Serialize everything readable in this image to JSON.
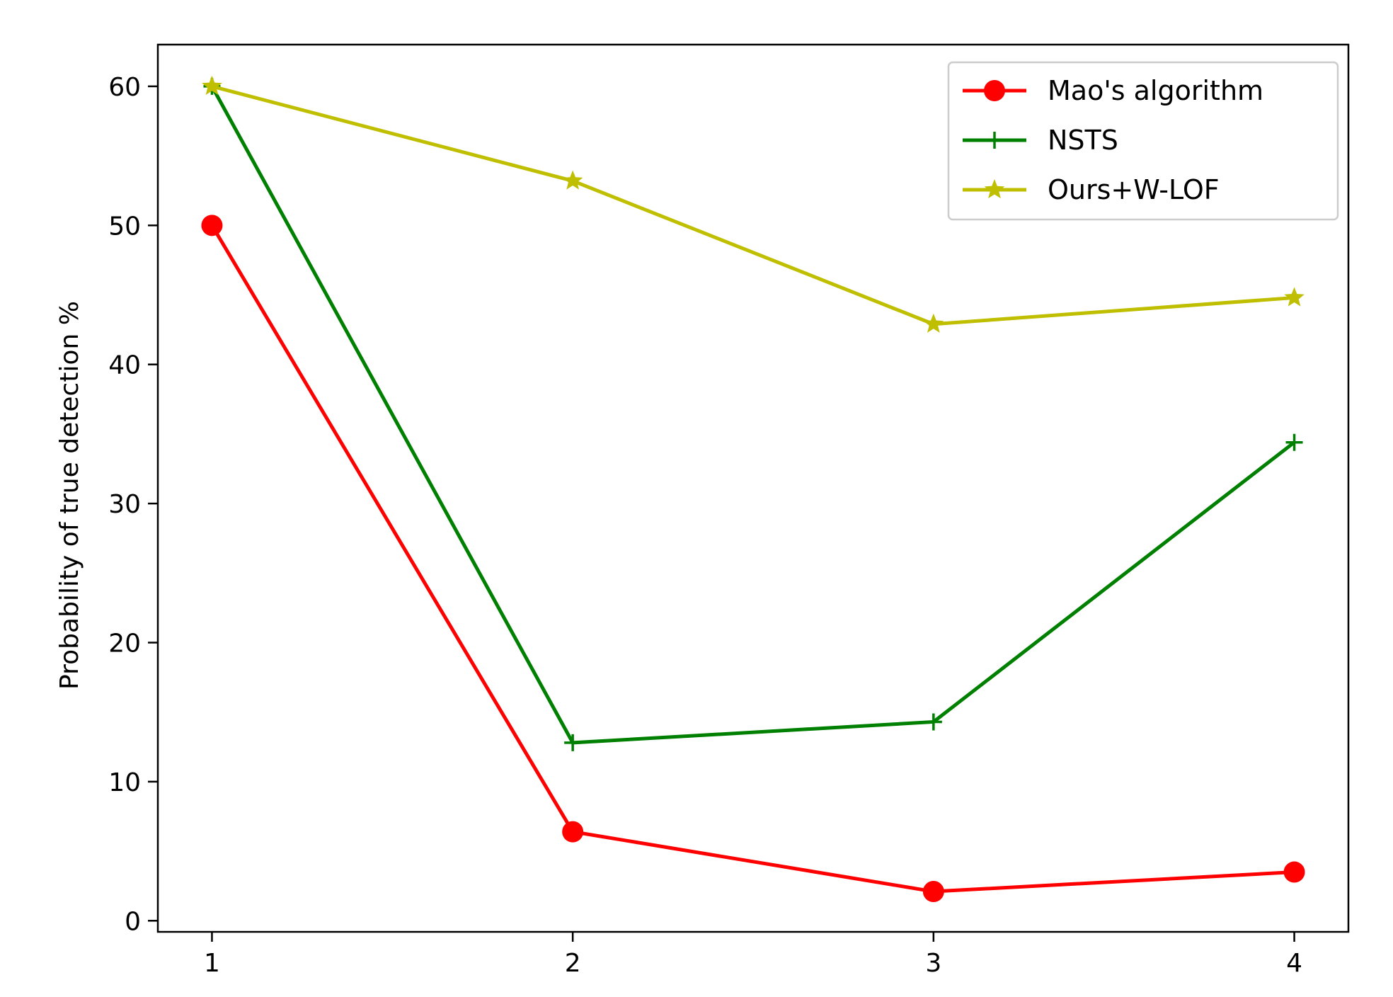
{
  "chart_data": {
    "type": "line",
    "title": "",
    "xlabel": "",
    "ylabel": "Probability of true detection %",
    "x": [
      1,
      2,
      3,
      4
    ],
    "x_ticks": [
      "1",
      "2",
      "3",
      "4"
    ],
    "xlim": [
      0.85,
      4.15
    ],
    "y_ticks": [
      "0",
      "10",
      "20",
      "30",
      "40",
      "50",
      "60"
    ],
    "ylim": [
      -0.8,
      63.0
    ],
    "grid": false,
    "legend_position": "top-right",
    "series": [
      {
        "name": "Mao's algorithm",
        "color": "#ff0000",
        "marker": "circle",
        "values": [
          50.0,
          6.4,
          2.1,
          3.5
        ]
      },
      {
        "name": "NSTS",
        "color": "#008000",
        "marker": "plus",
        "values": [
          60.0,
          12.8,
          14.3,
          34.4
        ]
      },
      {
        "name": "Ours+W-LOF",
        "color": "#bfbf00",
        "marker": "star",
        "values": [
          60.0,
          53.2,
          42.9,
          44.8
        ]
      }
    ]
  }
}
